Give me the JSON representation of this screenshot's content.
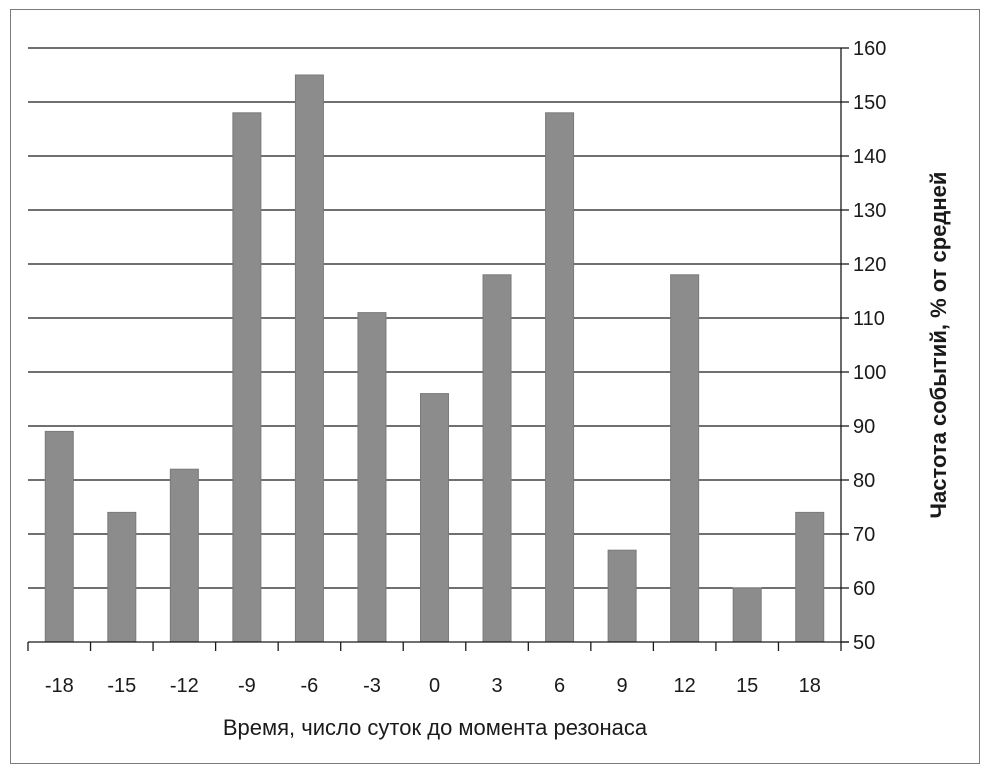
{
  "chart_data": {
    "type": "bar",
    "categories": [
      "-18",
      "-15",
      "-12",
      "-9",
      "-6",
      "-3",
      "0",
      "3",
      "6",
      "9",
      "12",
      "15",
      "18"
    ],
    "values": [
      89,
      74,
      82,
      148,
      155,
      111,
      96,
      118,
      148,
      67,
      118,
      60,
      74
    ],
    "xlabel": "Время, число суток до момента резонаса",
    "ylabel": "Частота событий, % от средней",
    "ylim": [
      50,
      160
    ],
    "yticks": [
      50,
      60,
      70,
      80,
      90,
      100,
      110,
      120,
      130,
      140,
      150,
      160
    ],
    "y_axis_position": "right",
    "grid": true,
    "legend": "none",
    "bar_color": "#8c8c8c",
    "grid_color": "#1a1a1a"
  }
}
